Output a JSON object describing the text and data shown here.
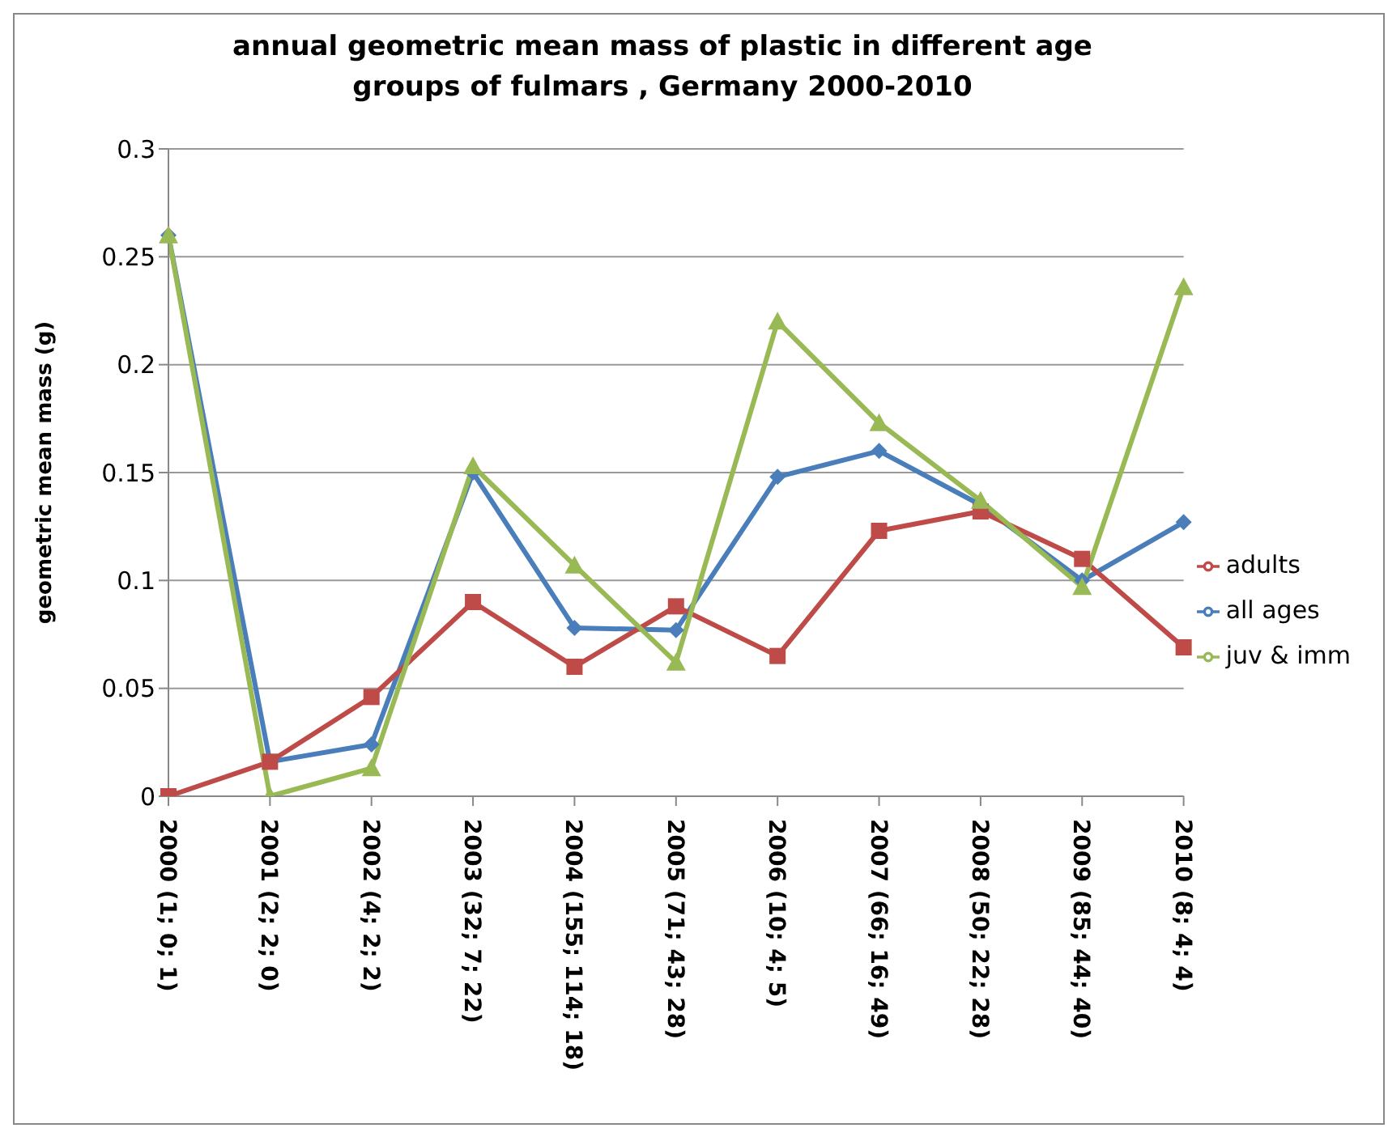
{
  "chart_data": {
    "type": "line",
    "title": "annual geometric mean mass of plastic in different age groups of fulmars , Germany 2000-2010",
    "ylabel": "geometric mean mass (g)",
    "categories": [
      "2000 (1; 0; 1)",
      "2001 (2; 2; 0)",
      "2002 (4; 2; 2)",
      "2003 (32; 7; 22)",
      "2004 (155; 114; 18)",
      "2005 (71; 43; 28)",
      "2006 (10; 4; 5)",
      "2007 (66; 16; 49)",
      "2008 (50; 22; 28)",
      "2009 (85; 44; 40)",
      "2010 (8; 4; 4)"
    ],
    "series": [
      {
        "name": "all ages",
        "color": "#4a7ebb",
        "marker": "diamond",
        "values": [
          0.26,
          0.016,
          0.024,
          0.15,
          0.078,
          0.077,
          0.148,
          0.16,
          0.135,
          0.1,
          0.127
        ]
      },
      {
        "name": "adults",
        "color": "#be4b48",
        "marker": "square",
        "values": [
          0,
          0.016,
          0.046,
          0.09,
          0.06,
          0.088,
          0.065,
          0.123,
          0.132,
          0.11,
          0.069
        ]
      },
      {
        "name": "juv & imm",
        "color": "#98b954",
        "marker": "triangle",
        "values": [
          0.26,
          0,
          0.013,
          0.153,
          0.107,
          0.062,
          0.22,
          0.173,
          0.137,
          0.097,
          0.236
        ]
      }
    ],
    "ylim": [
      0,
      0.3
    ],
    "yticks": [
      0,
      0.05,
      0.1,
      0.15,
      0.2,
      0.25,
      0.3
    ],
    "grid": "y",
    "legend": "right"
  }
}
